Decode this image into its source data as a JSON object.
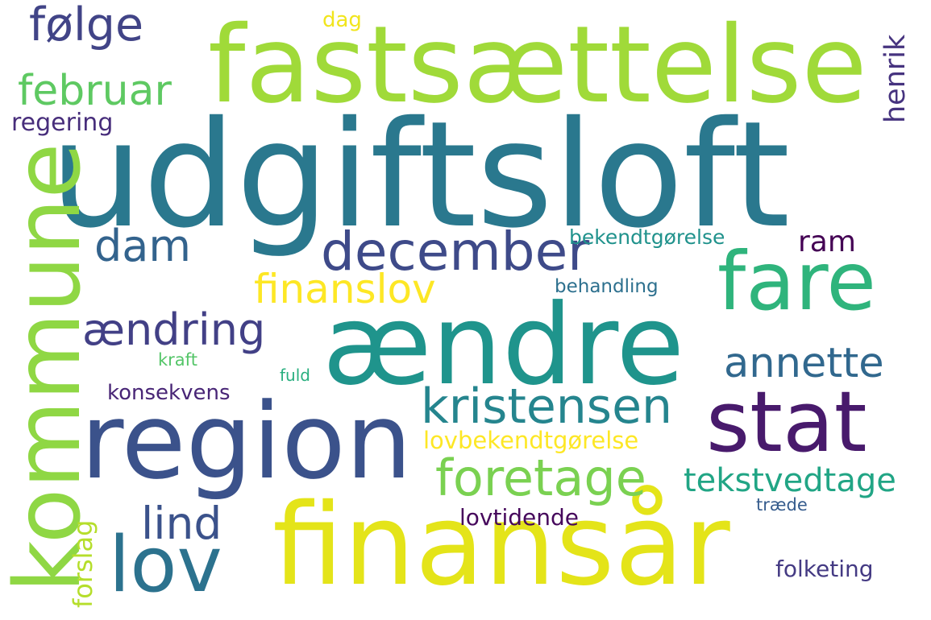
{
  "words": {
    "udgiftsloft": {
      "text": "udgiftsloft",
      "color": "#2a788e"
    },
    "fastsaettelse": {
      "text": "fastsættelse",
      "color": "#a0da39"
    },
    "finansaar": {
      "text": "finansår",
      "color": "#e4e419"
    },
    "aendre": {
      "text": "ændre",
      "color": "#1f948c"
    },
    "region": {
      "text": "region",
      "color": "#3b528b"
    },
    "stat": {
      "text": "stat",
      "color": "#481a6c"
    },
    "fare": {
      "text": "fare",
      "color": "#2fb47c"
    },
    "kommune": {
      "text": "kommune",
      "color": "#8fd744"
    },
    "lov": {
      "text": "lov",
      "color": "#2c728e"
    },
    "december": {
      "text": "december",
      "color": "#3e4a89"
    },
    "foretage": {
      "text": "foretage",
      "color": "#7ad151"
    },
    "kristensen": {
      "text": "kristensen",
      "color": "#25858e"
    },
    "finanslov": {
      "text": "finanslov",
      "color": "#fde725"
    },
    "foelge": {
      "text": "følge",
      "color": "#414487"
    },
    "februar": {
      "text": "februar",
      "color": "#5ec962"
    },
    "aendring": {
      "text": "ændring",
      "color": "#424086"
    },
    "annette": {
      "text": "annette",
      "color": "#31688e"
    },
    "lind": {
      "text": "lind",
      "color": "#3b528b"
    },
    "dam": {
      "text": "dam",
      "color": "#33638d"
    },
    "tekstvedtage": {
      "text": "tekstvedtage",
      "color": "#21a585"
    },
    "henrik": {
      "text": "henrik",
      "color": "#46337f"
    },
    "ram": {
      "text": "ram",
      "color": "#440154"
    },
    "lovbekendtgoerelse": {
      "text": "lovbekendtgørelse",
      "color": "#fde725"
    },
    "regering": {
      "text": "regering",
      "color": "#472d7b"
    },
    "forslag": {
      "text": "forslag",
      "color": "#b5de2b"
    },
    "folketing": {
      "text": "folketing",
      "color": "#443a83"
    },
    "konsekvens": {
      "text": "konsekvens",
      "color": "#482576"
    },
    "lovtidende": {
      "text": "lovtidende",
      "color": "#46085c"
    },
    "bekendtgoerelse": {
      "text": "bekendtgørelse",
      "color": "#20928c"
    },
    "behandling": {
      "text": "behandling",
      "color": "#2d708e"
    },
    "dag": {
      "text": "dag",
      "color": "#f1e51d"
    },
    "kraft": {
      "text": "kraft",
      "color": "#54c568"
    },
    "fuld": {
      "text": "fuld",
      "color": "#29af7f"
    },
    "traede": {
      "text": "træde",
      "color": "#365c8d"
    }
  }
}
